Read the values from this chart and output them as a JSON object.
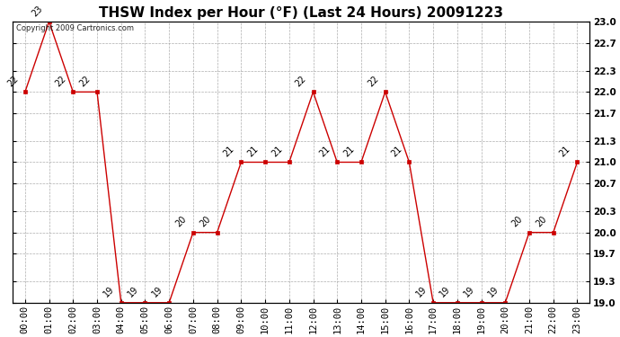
{
  "title": "THSW Index per Hour (°F) (Last 24 Hours) 20091223",
  "copyright": "Copyright 2009 Cartronics.com",
  "hours": [
    "00:00",
    "01:00",
    "02:00",
    "03:00",
    "04:00",
    "05:00",
    "06:00",
    "07:00",
    "08:00",
    "09:00",
    "10:00",
    "11:00",
    "12:00",
    "13:00",
    "14:00",
    "15:00",
    "16:00",
    "17:00",
    "18:00",
    "19:00",
    "20:00",
    "21:00",
    "22:00",
    "23:00"
  ],
  "values": [
    22,
    23,
    22,
    22,
    19,
    19,
    19,
    20,
    20,
    21,
    21,
    21,
    22,
    21,
    21,
    22,
    21,
    19,
    19,
    19,
    19,
    20,
    20,
    21
  ],
  "ylim_min": 19.0,
  "ylim_max": 23.0,
  "yticks": [
    19.0,
    19.3,
    19.7,
    20.0,
    20.3,
    20.7,
    21.0,
    21.3,
    21.7,
    22.0,
    22.3,
    22.7,
    23.0
  ],
  "ytick_labels": [
    "19.0",
    "19.3",
    "19.7",
    "20.0",
    "20.3",
    "20.7",
    "21.0",
    "21.3",
    "21.7",
    "22.0",
    "22.3",
    "22.7",
    "23.0"
  ],
  "line_color": "#cc0000",
  "marker_color": "#cc0000",
  "bg_color": "#ffffff",
  "grid_color": "#999999",
  "title_fontsize": 11,
  "tick_fontsize": 7.5,
  "label_rotation": 45,
  "value_label_rotation": 45
}
